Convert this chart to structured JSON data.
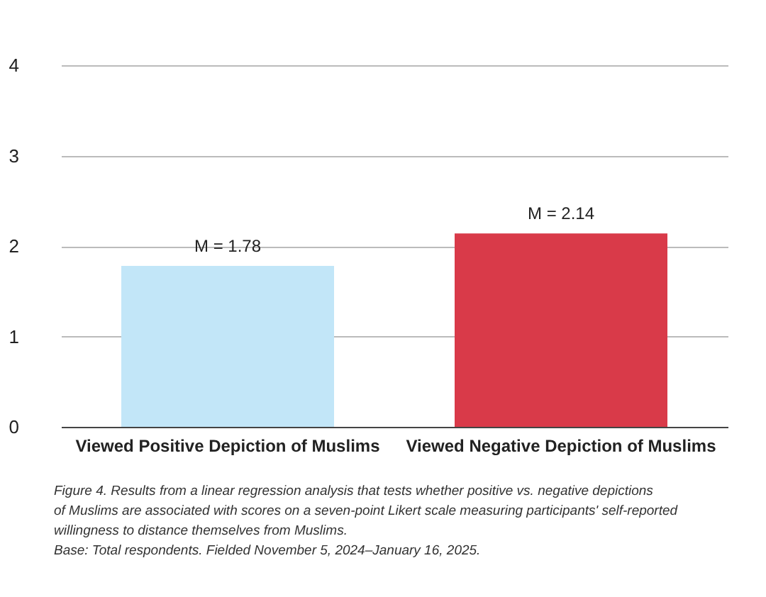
{
  "chart_data": {
    "type": "bar",
    "categories": [
      "Viewed Positive Depiction of Muslims",
      "Viewed Negative Depiction of Muslims"
    ],
    "values": [
      1.78,
      2.14
    ],
    "colors": [
      "#c2e6f8",
      "#d93a49"
    ],
    "value_labels": [
      "M = 1.78",
      "M = 2.14"
    ],
    "ylim": [
      0,
      4
    ],
    "yticks": [
      0,
      1,
      2,
      3,
      4
    ],
    "grid": "y",
    "annotations": [
      "Figure 4. Results from a linear regression analysis that tests whether positive vs. negative depictions of Muslims are associated with scores on a seven-point Likert scale measuring participants' self-reported willingness to distance themselves from Muslims.",
      "Base: Total respondents. Fielded November 5, 2024–January 16, 2025."
    ]
  }
}
